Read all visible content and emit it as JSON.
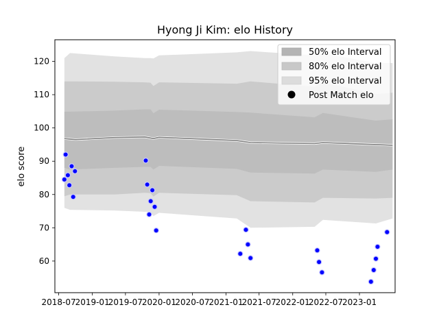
{
  "chart_data": {
    "type": "area",
    "title": "Hyong Ji Kim: elo History",
    "xlabel": "",
    "ylabel": "elo score",
    "xlim": [
      "2018-06-10",
      "2023-07-15"
    ],
    "ylim": [
      50.5,
      126.5
    ],
    "x_ticks": [
      "2018-07-01",
      "2019-01-01",
      "2019-07-01",
      "2020-01-01",
      "2020-07-01",
      "2021-01-01",
      "2021-07-01",
      "2022-01-01",
      "2022-07-01",
      "2023-01-01"
    ],
    "x_tick_labels": [
      "2018-07",
      "2019-01",
      "2019-07",
      "2020-01",
      "2020-07",
      "2021-01",
      "2021-07",
      "2022-01",
      "2022-07",
      "2023-01"
    ],
    "y_ticks": [
      60,
      70,
      80,
      90,
      100,
      110,
      120
    ],
    "grid": false,
    "legend_position": "upper right",
    "colors": {
      "band95": "#e2e2e2",
      "band80": "#cbcbcb",
      "band50": "#bdbdbd",
      "legend50": "#b4b4b4",
      "legend80": "#c8c8c8",
      "legend95": "#dcdcdc",
      "mean_line": "#808080",
      "point_fill": "#0000ff",
      "point_edge": "#c8c8ff"
    },
    "legend": [
      {
        "label": "50% elo Interval",
        "kind": "band50"
      },
      {
        "label": "80% elo Interval",
        "kind": "band80"
      },
      {
        "label": "95% elo Interval",
        "kind": "band95"
      },
      {
        "label": "Post Match elo",
        "kind": "point"
      }
    ],
    "mean_series": {
      "name": "mean elo",
      "dates": [
        "2018-08-01",
        "2018-10-01",
        "2019-05-01",
        "2019-10-15",
        "2019-12-01",
        "2020-01-01",
        "2021-03-01",
        "2021-05-15",
        "2022-05-01",
        "2022-06-15",
        "2023-04-01",
        "2023-07-01"
      ],
      "values": [
        96.8,
        96.5,
        97.1,
        97.3,
        96.8,
        97.2,
        96.2,
        95.6,
        95.3,
        95.6,
        95.0,
        94.8
      ]
    },
    "interval_bands": {
      "dates": [
        "2018-08-01",
        "2018-09-01",
        "2019-05-01",
        "2019-10-15",
        "2019-11-15",
        "2019-12-01",
        "2020-01-01",
        "2021-03-01",
        "2021-05-15",
        "2022-05-01",
        "2022-06-15",
        "2023-04-01",
        "2023-07-01"
      ],
      "upper95": [
        121.0,
        122.5,
        121.5,
        121.0,
        121.0,
        120.9,
        121.8,
        122.7,
        123.1,
        121.8,
        122.5,
        119.5,
        119.5
      ],
      "lower95": [
        76.0,
        75.4,
        75.2,
        74.8,
        74.8,
        73.5,
        74.5,
        72.8,
        70.0,
        70.3,
        72.4,
        71.3,
        72.8
      ],
      "upper80": [
        114.0,
        114.0,
        113.9,
        113.7,
        113.6,
        112.6,
        113.7,
        113.3,
        114.0,
        112.4,
        113.7,
        110.2,
        110.6
      ],
      "lower80": [
        79.5,
        80.0,
        80.0,
        80.5,
        80.4,
        79.4,
        80.5,
        79.8,
        78.0,
        77.6,
        79.0,
        78.8,
        79.0
      ],
      "upper50": [
        104.9,
        104.9,
        105.2,
        105.6,
        105.6,
        104.4,
        105.5,
        104.8,
        104.6,
        103.2,
        104.5,
        102.2,
        102.6
      ],
      "lower50": [
        88.0,
        87.5,
        88.0,
        88.3,
        88.3,
        87.5,
        88.6,
        87.7,
        86.6,
        86.3,
        87.5,
        86.8,
        87.5
      ]
    },
    "post_match_series": {
      "name": "Post Match elo",
      "points": [
        {
          "date": "2018-08-01",
          "value": 84.5
        },
        {
          "date": "2018-08-08",
          "value": 92.0
        },
        {
          "date": "2018-08-20",
          "value": 85.8
        },
        {
          "date": "2018-08-28",
          "value": 82.8
        },
        {
          "date": "2018-09-10",
          "value": 88.5
        },
        {
          "date": "2018-09-18",
          "value": 79.3
        },
        {
          "date": "2018-09-28",
          "value": 87.0
        },
        {
          "date": "2019-10-20",
          "value": 90.2
        },
        {
          "date": "2019-10-28",
          "value": 83.0
        },
        {
          "date": "2019-11-08",
          "value": 74.0
        },
        {
          "date": "2019-11-16",
          "value": 78.0
        },
        {
          "date": "2019-11-25",
          "value": 81.3
        },
        {
          "date": "2019-12-08",
          "value": 76.3
        },
        {
          "date": "2019-12-16",
          "value": 69.2
        },
        {
          "date": "2021-03-20",
          "value": 62.2
        },
        {
          "date": "2021-04-20",
          "value": 69.4
        },
        {
          "date": "2021-05-01",
          "value": 65.0
        },
        {
          "date": "2021-05-15",
          "value": 60.9
        },
        {
          "date": "2022-05-15",
          "value": 63.2
        },
        {
          "date": "2022-05-25",
          "value": 59.7
        },
        {
          "date": "2022-06-10",
          "value": 56.6
        },
        {
          "date": "2023-03-05",
          "value": 53.8
        },
        {
          "date": "2023-03-20",
          "value": 57.3
        },
        {
          "date": "2023-04-01",
          "value": 60.7
        },
        {
          "date": "2023-04-10",
          "value": 64.3
        },
        {
          "date": "2023-06-01",
          "value": 68.7
        }
      ]
    }
  }
}
